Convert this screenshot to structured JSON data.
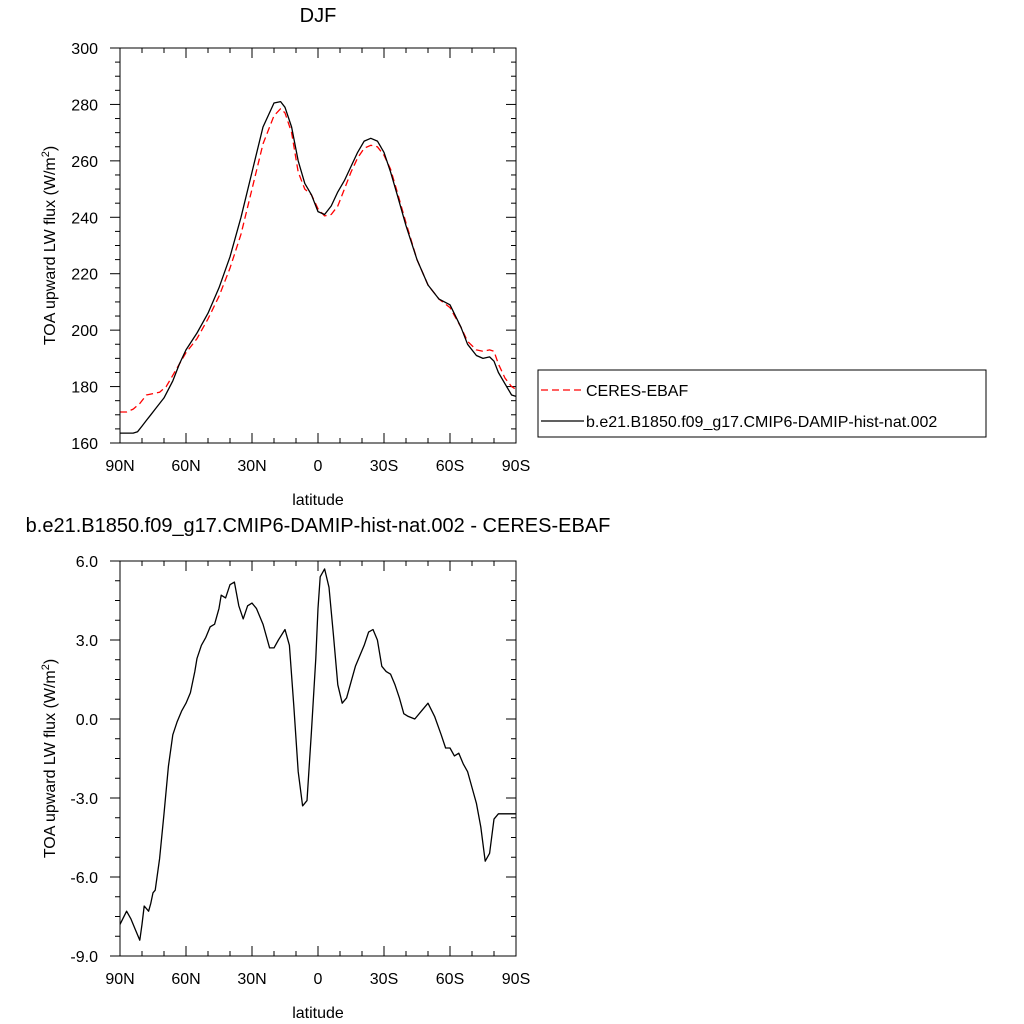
{
  "chart_data": [
    {
      "type": "line",
      "title": "DJF",
      "xlabel": "latitude",
      "ylabel_main": "TOA upward LW flux (W/m",
      "ylabel_sup": "2",
      "ylabel_close": ")",
      "xlim": [
        90,
        -90
      ],
      "ylim": [
        160,
        300
      ],
      "x_ticks": [
        {
          "v": 90,
          "label": "90N"
        },
        {
          "v": 60,
          "label": "60N"
        },
        {
          "v": 30,
          "label": "30N"
        },
        {
          "v": 0,
          "label": "0"
        },
        {
          "v": -30,
          "label": "30S"
        },
        {
          "v": -60,
          "label": "60S"
        },
        {
          "v": -90,
          "label": "90S"
        }
      ],
      "y_ticks": [
        {
          "v": 160,
          "label": "160"
        },
        {
          "v": 180,
          "label": "180"
        },
        {
          "v": 200,
          "label": "200"
        },
        {
          "v": 220,
          "label": "220"
        },
        {
          "v": 240,
          "label": "240"
        },
        {
          "v": 260,
          "label": "260"
        },
        {
          "v": 280,
          "label": "280"
        },
        {
          "v": 300,
          "label": "300"
        }
      ],
      "legend_position": "right",
      "series": [
        {
          "name": "CERES-EBAF",
          "color": "#ff0000",
          "dash": true,
          "x": [
            90,
            87,
            84,
            81,
            78,
            75,
            72,
            69,
            66,
            63,
            60,
            55,
            50,
            45,
            40,
            35,
            30,
            25,
            20,
            17,
            15,
            12,
            9,
            6,
            3,
            0,
            -3,
            -6,
            -9,
            -12,
            -15,
            -18,
            -21,
            -24,
            -27,
            -30,
            -33,
            -36,
            -40,
            -45,
            -50,
            -55,
            -60,
            -65,
            -68,
            -72,
            -75,
            -78,
            -80,
            -82,
            -85,
            -88,
            -90
          ],
          "y": [
            171,
            171,
            172,
            174,
            177,
            177.5,
            178,
            180,
            184,
            188,
            192,
            197,
            204,
            212,
            222,
            234,
            250,
            266,
            276,
            278.5,
            277,
            270,
            256,
            250,
            248,
            243,
            240.5,
            241,
            244,
            250,
            256,
            261,
            264.5,
            265.5,
            265,
            262,
            257,
            249,
            238,
            225,
            216,
            211,
            208,
            201,
            196,
            193,
            192.5,
            193,
            192.5,
            188,
            183,
            180,
            179
          ]
        },
        {
          "name": "b.e21.B1850.f09_g17.CMIP6-DAMIP-hist-nat.002",
          "color": "#000000",
          "dash": false,
          "x": [
            90,
            87,
            84,
            82,
            80,
            78,
            76,
            74,
            72,
            70,
            66,
            63,
            60,
            55,
            50,
            45,
            40,
            35,
            30,
            25,
            20,
            17,
            15,
            12,
            9,
            6,
            3,
            0,
            -3,
            -6,
            -9,
            -12,
            -15,
            -18,
            -21,
            -24,
            -27,
            -30,
            -33,
            -36,
            -40,
            -45,
            -50,
            -55,
            -60,
            -65,
            -68,
            -72,
            -75,
            -78,
            -80,
            -82,
            -85,
            -88,
            -90
          ],
          "y": [
            163.5,
            163.5,
            163.5,
            164,
            166,
            168,
            170,
            172,
            174,
            176,
            182,
            188,
            193,
            199,
            206,
            215,
            226,
            240,
            256,
            272,
            280.5,
            281,
            279,
            272,
            260,
            252,
            248,
            242,
            241,
            244,
            249,
            253,
            258,
            263,
            267,
            268,
            267,
            263,
            256,
            248,
            237,
            225,
            216,
            211,
            209,
            201,
            195,
            191,
            190,
            190.5,
            189,
            185,
            181,
            177,
            176.5
          ]
        }
      ]
    },
    {
      "type": "line",
      "title": "b.e21.B1850.f09_g17.CMIP6-DAMIP-hist-nat.002 - CERES-EBAF",
      "xlabel": "latitude",
      "ylabel_main": "TOA upward LW flux (W/m",
      "ylabel_sup": "2",
      "ylabel_close": ")",
      "xlim": [
        90,
        -90
      ],
      "ylim": [
        -9,
        6
      ],
      "x_ticks": [
        {
          "v": 90,
          "label": "90N"
        },
        {
          "v": 60,
          "label": "60N"
        },
        {
          "v": 30,
          "label": "30N"
        },
        {
          "v": 0,
          "label": "0"
        },
        {
          "v": -30,
          "label": "30S"
        },
        {
          "v": -60,
          "label": "60S"
        },
        {
          "v": -90,
          "label": "90S"
        }
      ],
      "y_ticks": [
        {
          "v": -9,
          "label": "-9.0"
        },
        {
          "v": -6,
          "label": "-6.0"
        },
        {
          "v": -3,
          "label": "-3.0"
        },
        {
          "v": 0,
          "label": "0.0"
        },
        {
          "v": 3,
          "label": "3.0"
        },
        {
          "v": 6,
          "label": "6.0"
        }
      ],
      "series": [
        {
          "name": "",
          "color": "#000000",
          "dash": false,
          "x": [
            90,
            87,
            85,
            83,
            81,
            80,
            79,
            77,
            76,
            75,
            74,
            72,
            70,
            68,
            66,
            64,
            62,
            60,
            58,
            56,
            55,
            53,
            51,
            49,
            47,
            45,
            44,
            42,
            40,
            38,
            36,
            34,
            32,
            30,
            28,
            25,
            22,
            20,
            18,
            15,
            13,
            11,
            9,
            7,
            5,
            3,
            1,
            0,
            -1,
            -3,
            -5,
            -7,
            -9,
            -11,
            -13,
            -15,
            -17,
            -19,
            -21,
            -23,
            -25,
            -27,
            -29,
            -31,
            -33,
            -35,
            -37,
            -39,
            -41,
            -44,
            -47,
            -50,
            -53,
            -56,
            -58,
            -60,
            -62,
            -64,
            -66,
            -68,
            -70,
            -72,
            -74,
            -76,
            -78,
            -80,
            -82,
            -84,
            -86,
            -88,
            -90
          ],
          "y": [
            -7.8,
            -7.3,
            -7.6,
            -8.0,
            -8.4,
            -7.8,
            -7.1,
            -7.3,
            -7.0,
            -6.6,
            -6.5,
            -5.3,
            -3.6,
            -1.8,
            -0.6,
            -0.1,
            0.3,
            0.6,
            1.0,
            1.8,
            2.3,
            2.8,
            3.1,
            3.5,
            3.6,
            4.2,
            4.7,
            4.6,
            5.1,
            5.2,
            4.3,
            3.8,
            4.3,
            4.4,
            4.2,
            3.6,
            2.7,
            2.7,
            3.0,
            3.4,
            2.8,
            0.5,
            -2.0,
            -3.3,
            -3.1,
            -0.5,
            2.3,
            4.2,
            5.4,
            5.7,
            5.0,
            3.2,
            1.3,
            0.6,
            0.8,
            1.4,
            2.0,
            2.4,
            2.8,
            3.3,
            3.4,
            3.0,
            2.0,
            1.8,
            1.7,
            1.3,
            0.8,
            0.2,
            0.1,
            0.0,
            0.3,
            0.6,
            0.1,
            -0.6,
            -1.1,
            -1.1,
            -1.4,
            -1.3,
            -1.7,
            -2.0,
            -2.6,
            -3.2,
            -4.1,
            -5.4,
            -5.1,
            -3.8,
            -3.6,
            -3.6,
            -3.6,
            -3.6,
            -3.6
          ]
        }
      ]
    }
  ]
}
